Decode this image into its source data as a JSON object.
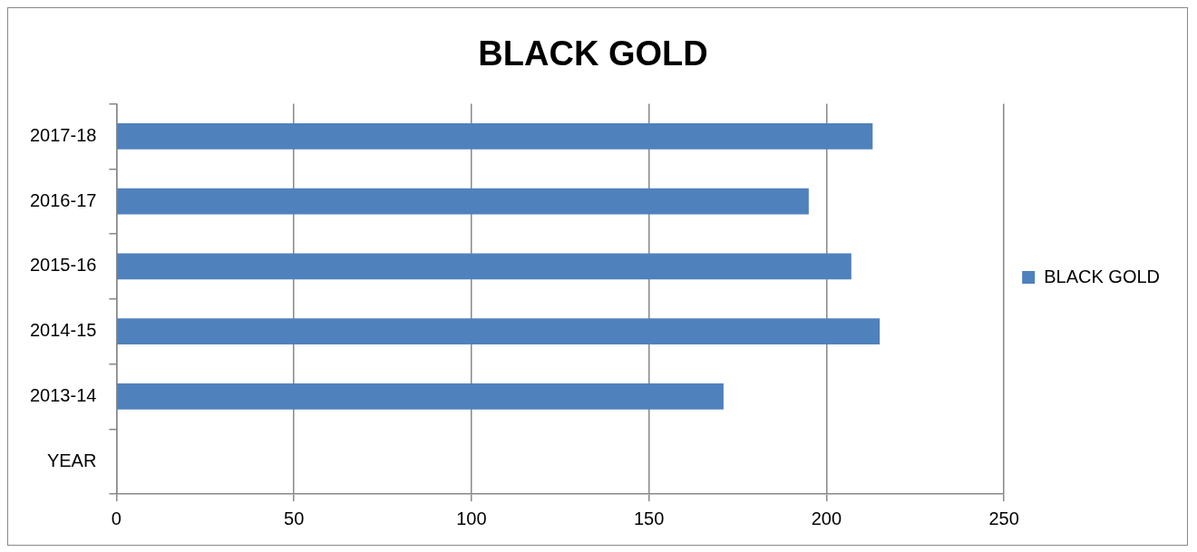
{
  "chart_data": {
    "type": "bar",
    "orientation": "horizontal",
    "title": "BLACK GOLD",
    "categories": [
      "2017-18",
      "2016-17",
      "2015-16",
      "2014-15",
      "2013-14",
      "YEAR"
    ],
    "series": [
      {
        "name": "BLACK GOLD",
        "color": "#4f81bd",
        "values": [
          213,
          195,
          207,
          215,
          171,
          null
        ]
      }
    ],
    "xlim": [
      0,
      250
    ],
    "xticks": [
      0,
      50,
      100,
      150,
      200,
      250
    ],
    "grid": "x",
    "legend": "right"
  }
}
